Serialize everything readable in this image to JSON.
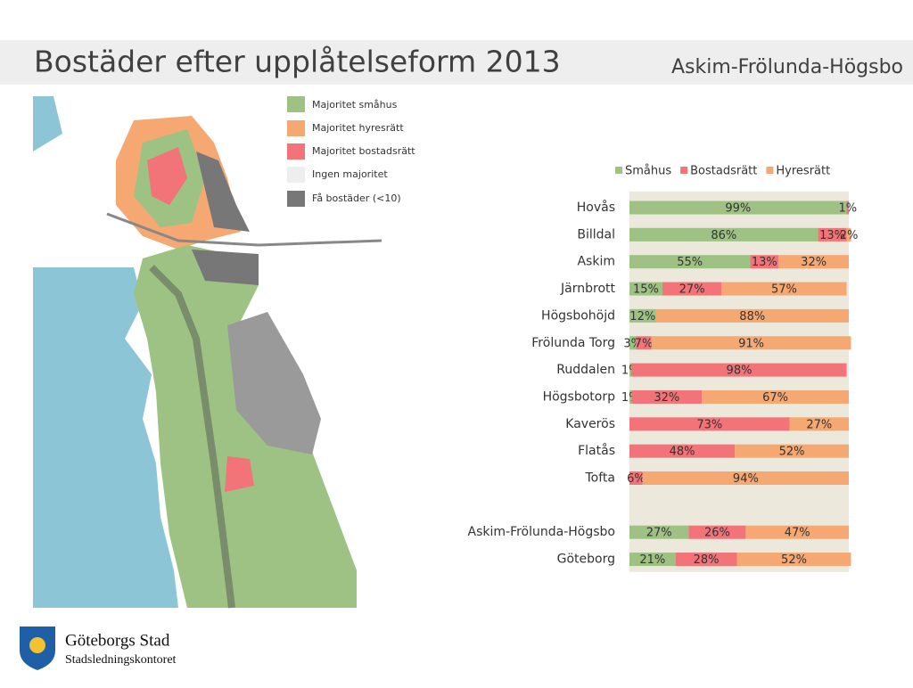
{
  "header": {
    "title": "Bostäder efter upplåtelseform 2013",
    "subtitle": "Askim-Frölunda-Högsbo"
  },
  "map": {
    "legend": [
      "Majoritet småhus",
      "Majoritet hyresrätt",
      "Majoritet bostadsrätt",
      "Ingen majoritet",
      "Få bostäder (<10)"
    ]
  },
  "logo": {
    "name": "Göteborgs Stad",
    "department": "Stadsledningskontoret"
  },
  "chart_data": {
    "type": "bar",
    "orientation": "horizontal",
    "stacked": true,
    "categories": [
      "Hovås",
      "Billdal",
      "Askim",
      "Järnbrott",
      "Högsbohöjd",
      "Frölunda Torg",
      "Ruddalen",
      "Högsbotorp",
      "Kaverös",
      "Flatås",
      "Tofta",
      null,
      "Askim-Frölunda-Högsbo",
      "Göteborg"
    ],
    "xlim": [
      0,
      100
    ],
    "legend": "top",
    "series": [
      {
        "name": "Småhus",
        "color": "#9dc283",
        "values": [
          99,
          86,
          55,
          15,
          12,
          3,
          1,
          1,
          0,
          0,
          0,
          null,
          27,
          21
        ],
        "value_labels": [
          "99%",
          "86%",
          "55%",
          "15%",
          "12%",
          "3%",
          "1%",
          "1%",
          null,
          null,
          null,
          null,
          "27%",
          "21%"
        ]
      },
      {
        "name": "Bostadsrätt",
        "color": "#f27378",
        "values": [
          1,
          13,
          13,
          27,
          0,
          7,
          98,
          32,
          73,
          48,
          6,
          null,
          26,
          28
        ],
        "value_labels": [
          "1%",
          "13%",
          "13%",
          "27%",
          null,
          "7%",
          "98%",
          "32%",
          "73%",
          "48%",
          "6%",
          null,
          "26%",
          "28%"
        ]
      },
      {
        "name": "Hyresrätt",
        "color": "#f6a873",
        "values": [
          0,
          2,
          32,
          57,
          88,
          91,
          0,
          67,
          27,
          52,
          94,
          null,
          47,
          52
        ],
        "value_labels": [
          null,
          "2%",
          "32%",
          "57%",
          "88%",
          "91%",
          null,
          "67%",
          "27%",
          "52%",
          "94%",
          null,
          "47%",
          "52%"
        ]
      }
    ]
  }
}
